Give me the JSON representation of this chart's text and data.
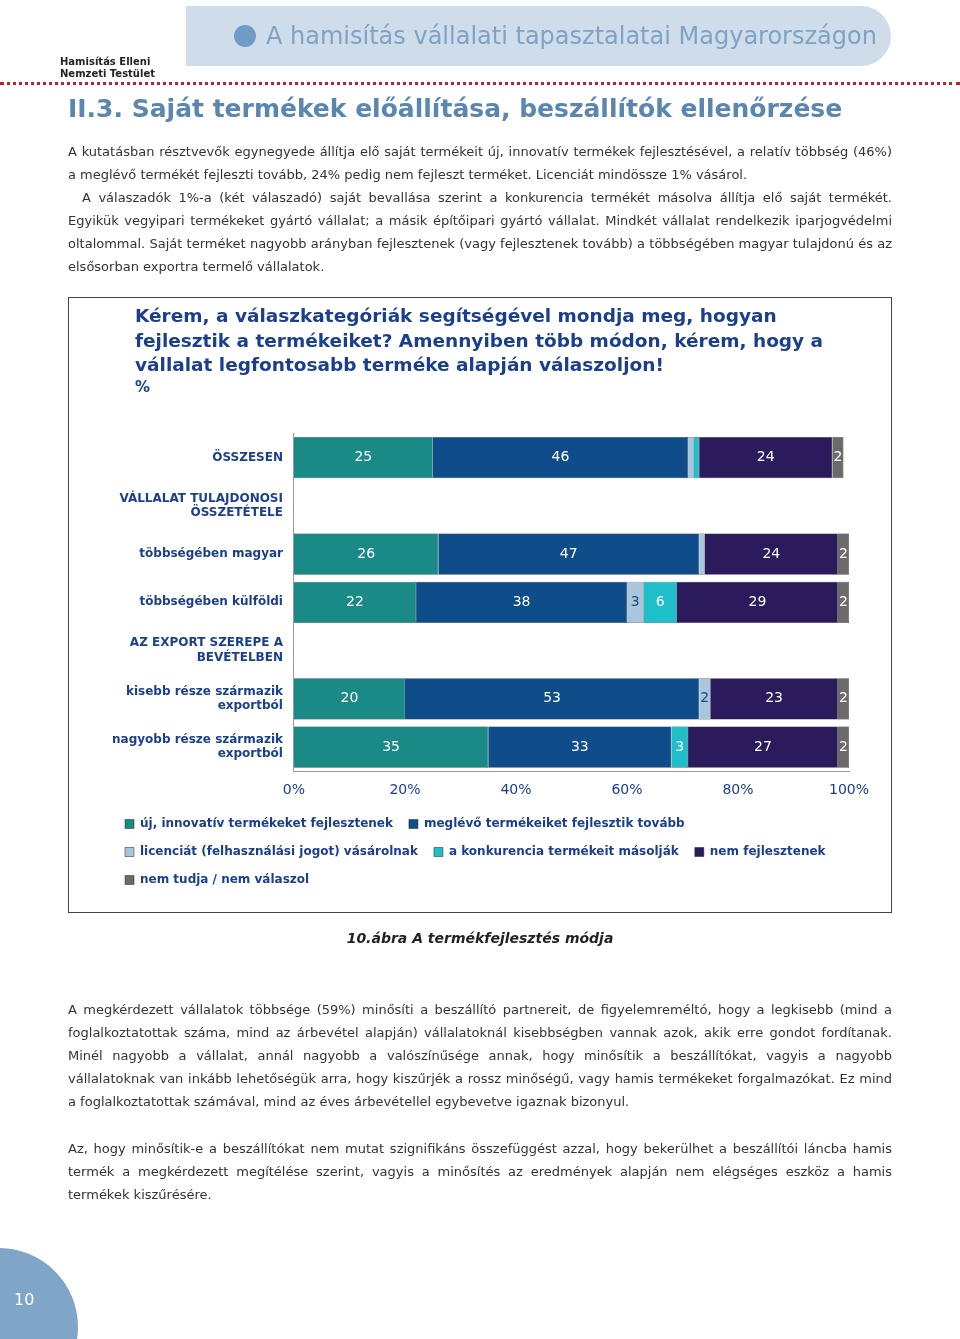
{
  "chart_data": {
    "type": "bar",
    "orientation": "horizontal",
    "stacked": true,
    "title": "Kérem, a válaszkategóriák segítségével mondja meg, hogyan fejlesztik a termékeiket? Amennyiben több módon, kérem, hogy a vállalat legfontosabb terméke alapján válaszoljon!",
    "subtitle": "%",
    "categories": [
      "ÖSSZESEN",
      "VÁLLALAT TULAJDONOSI ÖSSZETÉTELE",
      "többségében magyar",
      "többségében külföldi",
      "AZ EXPORT SZEREPE A BEVÉTELBEN",
      "kisebb része származik exportból",
      "nagyobb része származik exportból"
    ],
    "series": [
      {
        "name": "új, innovatív termékeket fejlesztenek",
        "color": "#1a8a86",
        "values": [
          25,
          null,
          26,
          22,
          null,
          20,
          35
        ]
      },
      {
        "name": "meglévő termékeiket fejlesztik tovább",
        "color": "#0f4c8a",
        "values": [
          46,
          null,
          47,
          38,
          null,
          53,
          33
        ]
      },
      {
        "name": "licenciát (felhasználási jogot) vásárolnak",
        "color": "#a9c6dc",
        "values": [
          1,
          null,
          1,
          3,
          null,
          2,
          0
        ],
        "value_labels": [
          null,
          null,
          null,
          "3",
          null,
          "2",
          null
        ]
      },
      {
        "name": "a konkurencia termékeit másolják",
        "color": "#1fbfc9",
        "values": [
          1,
          null,
          0,
          6,
          null,
          0,
          3
        ],
        "value_labels": [
          null,
          null,
          null,
          "6",
          null,
          null,
          "3"
        ]
      },
      {
        "name": "nem fejlesztenek",
        "color": "#2b1a5c",
        "values": [
          24,
          null,
          24,
          29,
          null,
          23,
          27
        ]
      },
      {
        "name": "nem tudja / nem válaszol",
        "color": "#6b6b6b",
        "values": [
          2,
          null,
          2,
          2,
          null,
          2,
          2
        ]
      }
    ],
    "xlim": [
      0,
      100
    ],
    "xticks": [
      {
        "value": 0,
        "label": "0%"
      },
      {
        "value": 20,
        "label": "20%"
      },
      {
        "value": 40,
        "label": "40%"
      },
      {
        "value": 60,
        "label": "60%"
      },
      {
        "value": 80,
        "label": "80%"
      },
      {
        "value": 100,
        "label": "100%"
      }
    ],
    "grid": false,
    "legend": "bottom",
    "data_labels": true,
    "annotations": [
      "Hamisítás Elleni Nemzeti Testület",
      "A hamisítás vállalati tapasztalatai Magyarországon",
      "II.3. Saját termékek előállítása, beszállítók ellenőrzése",
      "A kutatásban résztvevők egynegyede állítja elő saját termékeit új, innovatív termékek fejlesztésével, a relatív többség (46%) a meglévő termékét fejleszti tovább, 24% pedig nem fejleszt terméket. Licenciát mindössze 1% vásárol.",
      "A válaszadók 1%-a (két válaszadó) saját bevallása szerint a konkurencia termékét másolva állítja elő saját termékét. Egyikük vegyipari termékeket gyártó vállalat; a másik építőipari gyártó vállalat. Mindkét vállalat rendelkezik iparjogvédelmi oltalommal. Saját terméket nagyobb arányban fejlesztenek (vagy fejlesztenek tovább) a többségében magyar tulajdonú és az elsősorban exportra termelő vállalatok.",
      "10.ábra A termékfejlesztés módja",
      "A megkérdezett vállalatok többsége (59%) minősíti a beszállító partnereit, de figyelemreméltó, hogy a legkisebb (mind a foglalkoztatottak száma, mind az árbevétel alapján) vállalatoknál kisebbségben vannak azok, akik erre gondot fordítanak. Minél nagyobb a vállalat, annál nagyobb a valószínűsége annak, hogy minősítik a beszállítókat, vagyis a nagyobb vállalatoknak van inkább lehetőségük arra, hogy kiszűrjék a rossz minőségű, vagy hamis termékeket forgalmazókat. Ez mind a foglalkoztatottak számával, mind az éves árbevétellel egybevetve igaznak bizonyul.",
      "Az, hogy minősítik-e a beszállítókat nem mutat szignifikáns összefüggést azzal, hogy bekerülhet a beszállítói láncba hamis termék a megkérdezett megítélése szerint, vagyis a minősítés az eredmények alapján nem elégséges eszköz a hamis termékek kiszűrésére.",
      "10"
    ]
  }
}
